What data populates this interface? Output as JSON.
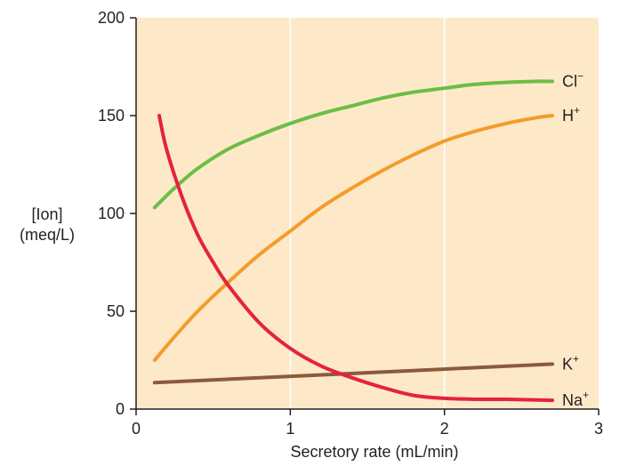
{
  "chart_data": {
    "type": "line",
    "title": "",
    "xlabel": "Secretory rate (mL/min)",
    "ylabel_lines": [
      "[Ion]",
      "(meq/L)"
    ],
    "xlim": [
      0,
      3
    ],
    "ylim": [
      0,
      200
    ],
    "x_ticks": [
      0,
      1,
      2,
      3
    ],
    "y_ticks": [
      0,
      50,
      100,
      150,
      200
    ],
    "grid": "vertical gridlines at x ticks",
    "legend": "labels at right end of each line",
    "plot_background": "#fde9c8",
    "series": [
      {
        "name": "Cl",
        "label_base": "Cl",
        "label_sup": "−",
        "color": "#6cbd45",
        "x": [
          0.12,
          0.25,
          0.4,
          0.6,
          0.8,
          1.0,
          1.2,
          1.4,
          1.6,
          1.8,
          2.0,
          2.2,
          2.4,
          2.6,
          2.7
        ],
        "y": [
          103,
          113,
          123,
          133,
          140,
          146,
          151,
          155,
          159,
          162,
          164,
          166,
          167,
          167.5,
          167.5
        ]
      },
      {
        "name": "H",
        "label_base": "H",
        "label_sup": "+",
        "color": "#f39c2b",
        "x": [
          0.12,
          0.25,
          0.4,
          0.6,
          0.8,
          1.0,
          1.2,
          1.4,
          1.6,
          1.8,
          2.0,
          2.2,
          2.4,
          2.6,
          2.7
        ],
        "y": [
          25,
          37,
          50,
          65,
          79,
          91,
          103,
          113,
          122,
          130,
          137,
          142,
          146,
          149,
          150
        ]
      },
      {
        "name": "K",
        "label_base": "K",
        "label_sup": "+",
        "color": "#8b5a3c",
        "x": [
          0.12,
          2.7
        ],
        "y": [
          13.5,
          23
        ]
      },
      {
        "name": "Na",
        "label_base": "Na",
        "label_sup": "+",
        "color": "#e5223f",
        "x": [
          0.15,
          0.2,
          0.3,
          0.4,
          0.5,
          0.6,
          0.8,
          1.0,
          1.2,
          1.4,
          1.6,
          1.8,
          2.0,
          2.2,
          2.4,
          2.7
        ],
        "y": [
          150,
          132,
          108,
          89,
          75,
          63,
          44,
          31,
          22,
          16,
          11,
          7,
          5.5,
          5,
          5,
          4.5
        ]
      }
    ]
  }
}
